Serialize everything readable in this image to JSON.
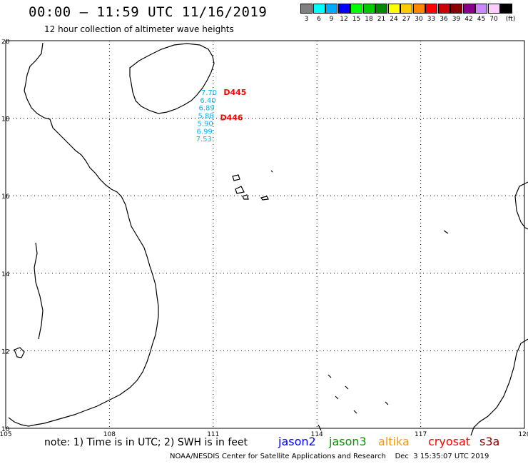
{
  "header": {
    "title": "00:00 – 11:59 UTC 11/16/2019",
    "subtitle": "12 hour collection of altimeter wave heights"
  },
  "legend": {
    "unit": "(ft)",
    "bins": [
      {
        "label": "3",
        "color": "#808080"
      },
      {
        "label": "6",
        "color": "#00ffff"
      },
      {
        "label": "9",
        "color": "#00aaff"
      },
      {
        "label": "12",
        "color": "#0000ff"
      },
      {
        "label": "15",
        "color": "#00ff00"
      },
      {
        "label": "18",
        "color": "#00cc00"
      },
      {
        "label": "21",
        "color": "#008800"
      },
      {
        "label": "24",
        "color": "#ffff00"
      },
      {
        "label": "27",
        "color": "#ffcc00"
      },
      {
        "label": "30",
        "color": "#ff8800"
      },
      {
        "label": "33",
        "color": "#ff0000"
      },
      {
        "label": "36",
        "color": "#cc0000"
      },
      {
        "label": "39",
        "color": "#880000"
      },
      {
        "label": "42",
        "color": "#880088"
      },
      {
        "label": "45",
        "color": "#cc88ff"
      },
      {
        "label": "70",
        "color": "#ffccff"
      },
      {
        "label": "",
        "color": "#000000"
      }
    ]
  },
  "map": {
    "lon_range": [
      105,
      120
    ],
    "lat_range": [
      10,
      20
    ],
    "lon_ticks": [
      "105",
      "108",
      "111",
      "114",
      "117",
      "120"
    ],
    "lat_ticks": [
      "20",
      "18",
      "16",
      "14",
      "12",
      "10"
    ],
    "grid_line_color": "#000000",
    "coast_color": "#000000",
    "swh_color": "#00b4ff",
    "track_label_color": "#ff0000"
  },
  "chart_data": {
    "type": "scatter",
    "xlabel": "",
    "ylabel": "",
    "xlim": [
      105,
      120
    ],
    "ylim": [
      10,
      20
    ],
    "tracks": [
      {
        "label": "D445",
        "lon": 111.3,
        "lat": 18.6
      },
      {
        "label": "D446",
        "lon": 111.2,
        "lat": 17.95
      }
    ],
    "swh_points": [
      {
        "text": "7.70",
        "lon": 110.65,
        "lat": 18.6
      },
      {
        "text": "6.40",
        "lon": 110.62,
        "lat": 18.4
      },
      {
        "text": "6.89",
        "lon": 110.58,
        "lat": 18.2
      },
      {
        "text": "5.88",
        "lon": 110.56,
        "lat": 18.0
      },
      {
        "text": "5.90",
        "lon": 110.54,
        "lat": 17.8
      },
      {
        "text": "6.99",
        "lon": 110.52,
        "lat": 17.6
      },
      {
        "text": "7.53",
        "lon": 110.5,
        "lat": 17.4
      }
    ]
  },
  "footer": {
    "note": "note: 1) Time is in UTC; 2) SWH is in feet",
    "satellites": [
      {
        "name": "jason2",
        "color": "#0000ff"
      },
      {
        "name": "jason3",
        "color": "#009900"
      },
      {
        "name": "altika",
        "color": "#ff9900"
      },
      {
        "name": "cryosat",
        "color": "#ff0000"
      },
      {
        "name": "s3a",
        "color": "#880000"
      }
    ],
    "credit": "NOAA/NESDIS Center for Satellite Applications and Research    Dec  3 15:35:07 UTC 2019"
  }
}
